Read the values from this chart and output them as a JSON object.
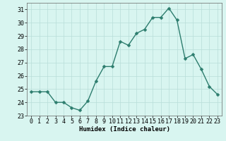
{
  "x": [
    0,
    1,
    2,
    3,
    4,
    5,
    6,
    7,
    8,
    9,
    10,
    11,
    12,
    13,
    14,
    15,
    16,
    17,
    18,
    19,
    20,
    21,
    22,
    23
  ],
  "y": [
    24.8,
    24.8,
    24.8,
    24.0,
    24.0,
    23.6,
    23.4,
    24.1,
    25.6,
    26.7,
    26.7,
    28.6,
    28.3,
    29.2,
    29.5,
    30.4,
    30.4,
    31.1,
    30.2,
    27.3,
    27.6,
    26.5,
    25.2,
    24.6
  ],
  "line_color": "#2d7d6e",
  "marker_color": "#2d7d6e",
  "bg_color": "#d8f5f0",
  "grid_color": "#b8ddd8",
  "xlabel": "Humidex (Indice chaleur)",
  "xlim": [
    -0.5,
    23.5
  ],
  "ylim": [
    23,
    31.5
  ],
  "yticks": [
    23,
    24,
    25,
    26,
    27,
    28,
    29,
    30,
    31
  ],
  "xticks": [
    0,
    1,
    2,
    3,
    4,
    5,
    6,
    7,
    8,
    9,
    10,
    11,
    12,
    13,
    14,
    15,
    16,
    17,
    18,
    19,
    20,
    21,
    22,
    23
  ],
  "xlabel_fontsize": 6.5,
  "tick_fontsize": 6.0,
  "line_width": 1.0,
  "marker_size": 2.5
}
